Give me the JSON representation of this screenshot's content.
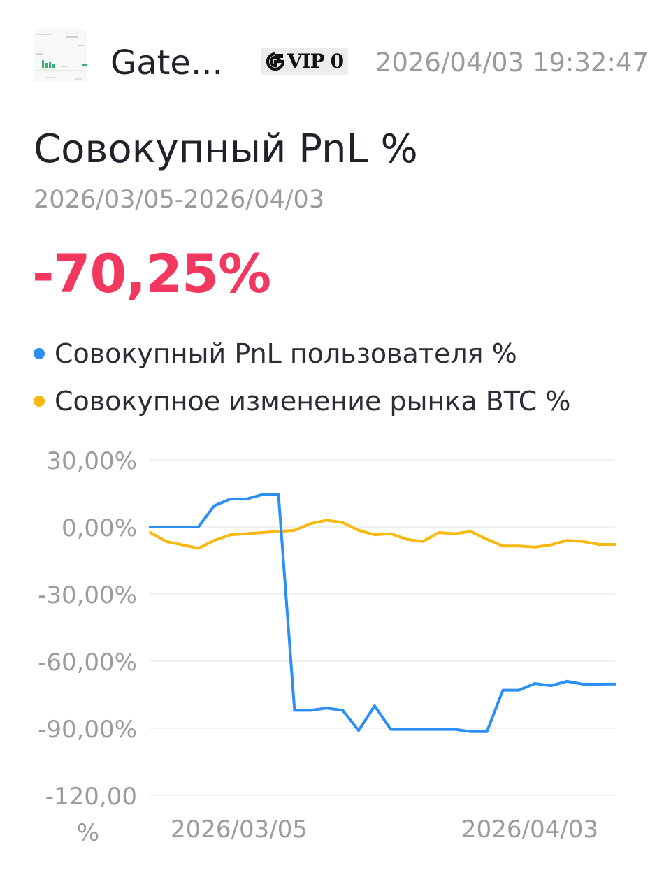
{
  "header": {
    "username": "Gate...",
    "vip_label": "VIP 0",
    "timestamp": "2026/04/03 19:32:47"
  },
  "summary": {
    "title": "Совокупный PnL %",
    "date_range": "2026/03/05-2026/04/03",
    "pnl_value": "-70,25%"
  },
  "colors": {
    "user_series": "#2b8ff5",
    "btc_series": "#f7b80f",
    "pnl_negative": "#f2385f",
    "axis_text": "#9a9ba0",
    "grid": "#ececec"
  },
  "chart_data": {
    "type": "line",
    "title": "",
    "xlabel": "",
    "ylabel": "",
    "grid": true,
    "legend": "top",
    "ylim": [
      -120,
      30
    ],
    "yticks": [
      30,
      0,
      -30,
      -60,
      -90,
      -120
    ],
    "ytick_labels": [
      "30,00%",
      "0,00%",
      "-30,00%",
      "-60,00%",
      "-90,00%",
      "-120,00 %"
    ],
    "x": [
      "2026/03/05",
      "2026/03/06",
      "2026/03/07",
      "2026/03/08",
      "2026/03/09",
      "2026/03/10",
      "2026/03/11",
      "2026/03/12",
      "2026/03/13",
      "2026/03/14",
      "2026/03/15",
      "2026/03/16",
      "2026/03/17",
      "2026/03/18",
      "2026/03/19",
      "2026/03/20",
      "2026/03/21",
      "2026/03/22",
      "2026/03/23",
      "2026/03/24",
      "2026/03/25",
      "2026/03/26",
      "2026/03/27",
      "2026/03/28",
      "2026/03/29",
      "2026/03/30",
      "2026/03/31",
      "2026/04/01",
      "2026/04/02",
      "2026/04/03"
    ],
    "xtick_labels": [
      "2026/03/05",
      "2026/04/03"
    ],
    "series": [
      {
        "name": "Совокупный PnL пользователя %",
        "color": "#2b8ff5",
        "values": [
          0,
          0,
          0,
          0,
          9.5,
          12.5,
          12.5,
          14.5,
          14.5,
          -82,
          -82,
          -81,
          -82,
          -91,
          -80,
          -90.5,
          -90.5,
          -90.5,
          -90.5,
          -90.5,
          -91.5,
          -91.5,
          -73,
          -73,
          -70,
          -71,
          -69,
          -70.3,
          -70.3,
          -70.25
        ]
      },
      {
        "name": "Совокупное изменение рынка BTC %",
        "color": "#f7b80f",
        "values": [
          -2.5,
          -6.5,
          -8,
          -9.5,
          -6,
          -3.5,
          -3,
          -2.5,
          -2,
          -1.5,
          1.5,
          3,
          2,
          -1.5,
          -3.5,
          -3,
          -5.5,
          -6.5,
          -2.5,
          -3,
          -2,
          -5.5,
          -8.5,
          -8.5,
          -9,
          -8,
          -6,
          -6.5,
          -7.8,
          -7.8
        ]
      }
    ]
  }
}
